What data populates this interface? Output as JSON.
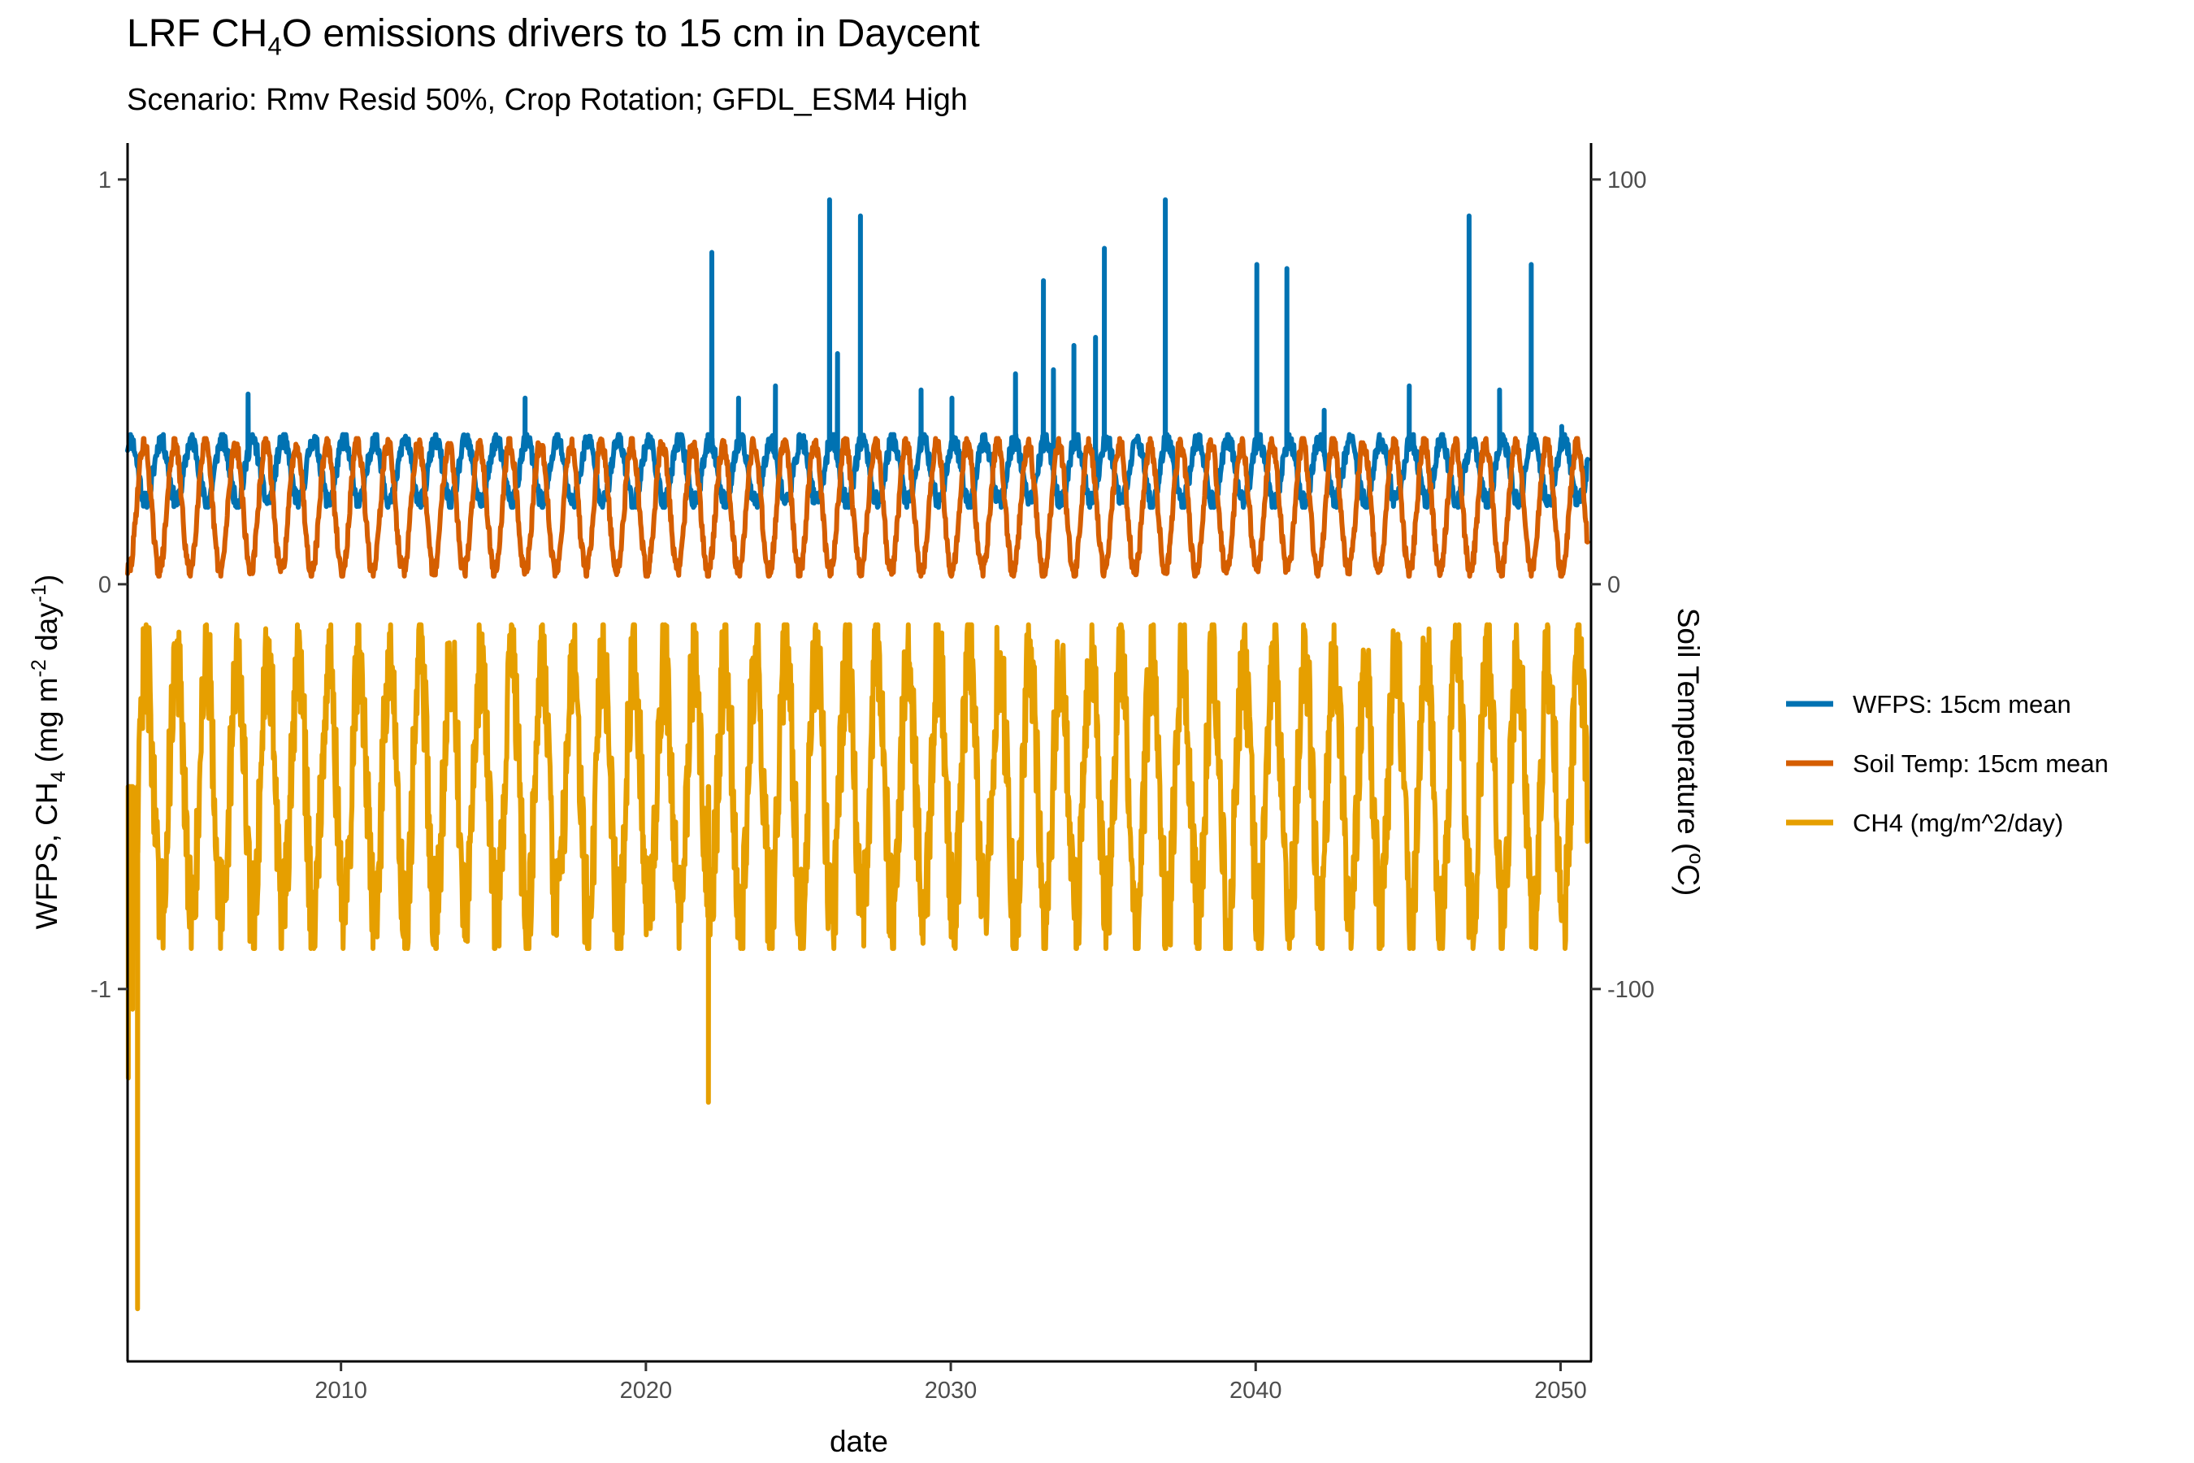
{
  "chart_data": {
    "type": "line",
    "title_parts": [
      "LRF CH",
      "4",
      "O emissions drivers to 15 cm in Daycent"
    ],
    "subtitle": "Scenario: Rmv Resid 50%, Crop Rotation; GFDL_ESM4 High",
    "xlabel": "date",
    "ylabel_left_parts": [
      "WFPS, CH",
      "4",
      " (mg m",
      "-2",
      " day",
      "-1",
      ")"
    ],
    "ylabel_right_parts": [
      "Soil Temperature (",
      "o",
      "C)"
    ],
    "x_range": [
      "2003-01-01",
      "2051-01-01"
    ],
    "x_ticks": [
      {
        "value": 2010,
        "label": "2010"
      },
      {
        "value": 2020,
        "label": "2020"
      },
      {
        "value": 2030,
        "label": "2030"
      },
      {
        "value": 2040,
        "label": "2040"
      },
      {
        "value": 2050,
        "label": "2050"
      }
    ],
    "y_left_range": [
      -1.92,
      1.09
    ],
    "y_left_ticks": [
      {
        "value": 1,
        "label": "1"
      },
      {
        "value": 0,
        "label": "0"
      },
      {
        "value": -1,
        "label": "-1"
      }
    ],
    "y_right_range": [
      -192,
      109
    ],
    "y_right_ticks": [
      {
        "value": 100,
        "label": "100"
      },
      {
        "value": 0,
        "label": "0"
      },
      {
        "value": -100,
        "label": "-100"
      }
    ],
    "grid": false,
    "legend_position": "right",
    "series": [
      {
        "name": "WFPS: 15cm mean",
        "color": "#0072B2",
        "axis": "left",
        "annual_pattern": {
          "min": 0.19,
          "max": 0.37,
          "start": 2003.0,
          "end": 2050.9
        },
        "spikes": [
          {
            "date": "2006-12-15",
            "value": 0.47
          },
          {
            "date": "2016-01-15",
            "value": 0.46
          },
          {
            "date": "2022-03-01",
            "value": 0.82
          },
          {
            "date": "2023-01-15",
            "value": 0.46
          },
          {
            "date": "2024-04-01",
            "value": 0.49
          },
          {
            "date": "2026-01-10",
            "value": 0.95
          },
          {
            "date": "2026-04-15",
            "value": 0.57
          },
          {
            "date": "2027-01-15",
            "value": 0.91
          },
          {
            "date": "2029-01-10",
            "value": 0.48
          },
          {
            "date": "2030-01-15",
            "value": 0.46
          },
          {
            "date": "2032-02-15",
            "value": 0.52
          },
          {
            "date": "2033-01-15",
            "value": 0.75
          },
          {
            "date": "2033-05-15",
            "value": 0.53
          },
          {
            "date": "2034-01-15",
            "value": 0.59
          },
          {
            "date": "2034-10-01",
            "value": 0.61
          },
          {
            "date": "2035-01-15",
            "value": 0.83
          },
          {
            "date": "2037-01-15",
            "value": 0.95
          },
          {
            "date": "2040-01-15",
            "value": 0.79
          },
          {
            "date": "2041-01-10",
            "value": 0.78
          },
          {
            "date": "2042-04-01",
            "value": 0.43
          },
          {
            "date": "2045-01-15",
            "value": 0.49
          },
          {
            "date": "2047-01-01",
            "value": 0.91
          },
          {
            "date": "2048-01-01",
            "value": 0.48
          },
          {
            "date": "2049-01-15",
            "value": 0.79
          },
          {
            "date": "2050-01-15",
            "value": 0.39
          }
        ]
      },
      {
        "name": "Soil Temp: 15cm mean",
        "color": "#D55E00",
        "axis": "right",
        "annual_pattern": {
          "min": 2,
          "max": 36,
          "start": 2003.0,
          "end": 2050.9
        }
      },
      {
        "name": "CH4 (mg/m^2/day)",
        "color": "#E69F00",
        "axis": "left",
        "annual_pattern": {
          "min": -0.9,
          "max": -0.1,
          "start": 2003.3,
          "end": 2050.9
        },
        "dips": [
          {
            "date": "2003-01-10",
            "value": -1.22
          },
          {
            "date": "2003-03-01",
            "value": -1.05
          },
          {
            "date": "2003-05-01",
            "value": -1.79
          },
          {
            "date": "2022-01-20",
            "value": -1.28
          }
        ]
      }
    ]
  }
}
